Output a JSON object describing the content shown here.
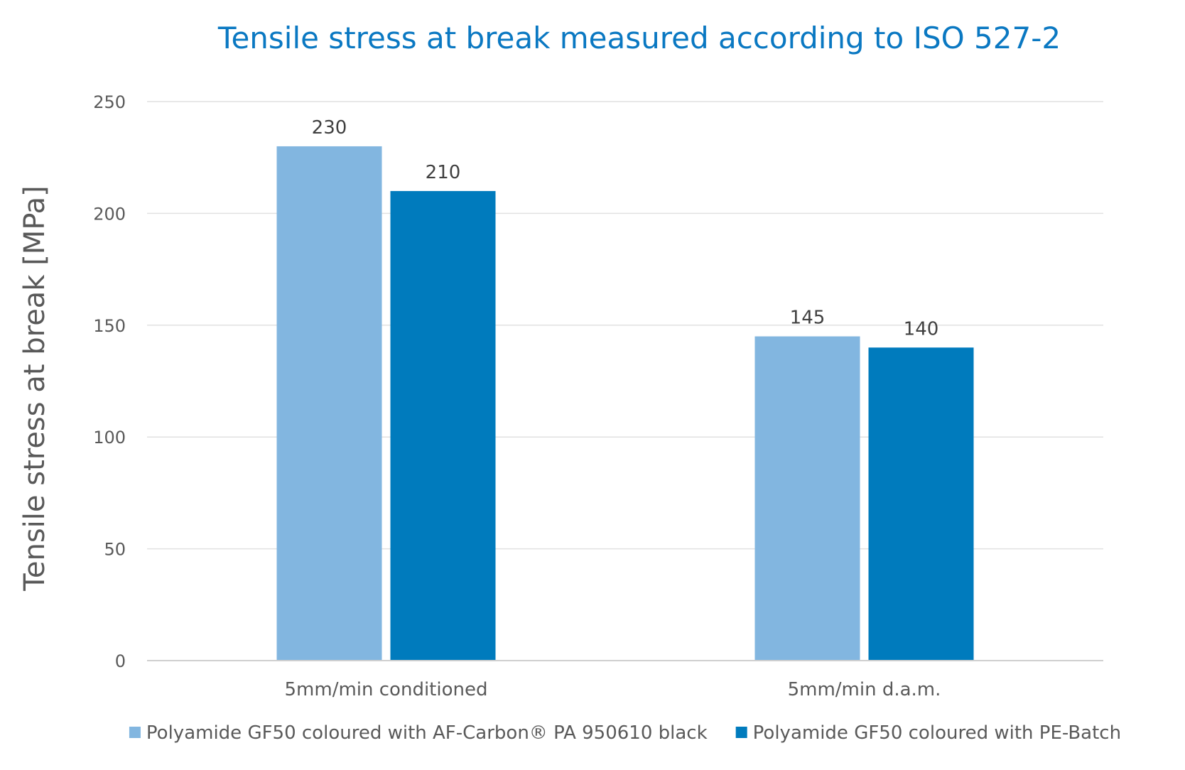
{
  "chart_data": {
    "type": "bar",
    "title": "Tensile stress at break measured according to ISO 527-2",
    "xlabel": "",
    "ylabel": "Tensile stress at break [MPa]",
    "categories": [
      "5mm/min conditioned",
      "5mm/min d.a.m."
    ],
    "series": [
      {
        "name": "Polyamide GF50 coloured with AF-Carbon® PA 950610 black",
        "values": [
          230,
          145
        ],
        "color": "#82b6e0"
      },
      {
        "name": "Polyamide GF50 coloured with PE-Batch",
        "values": [
          210,
          140
        ],
        "color": "#007bbd"
      }
    ],
    "ylim": [
      0,
      250
    ],
    "yticks": [
      0,
      50,
      100,
      150,
      200,
      250
    ],
    "grid": true,
    "legend_position": "bottom",
    "data_labels": true
  },
  "colors": {
    "title": "#0a78c2",
    "axis_text": "#595959",
    "data_label": "#404040",
    "gridline": "#e1e1e1",
    "axis_line": "#cfcfcf"
  }
}
